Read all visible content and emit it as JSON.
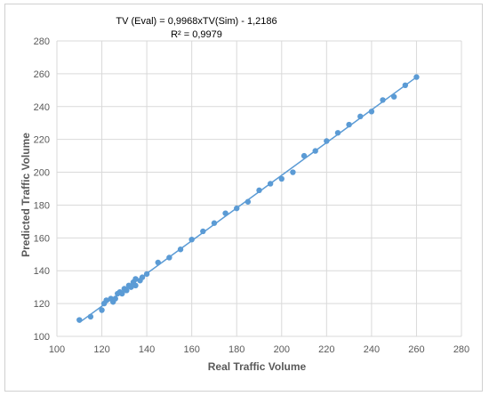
{
  "chart_data": {
    "type": "scatter",
    "title": "",
    "xlabel": "Real Traffic Volume",
    "ylabel": "Predicted Traffic Volume",
    "xlim": [
      100,
      280
    ],
    "ylim": [
      100,
      280
    ],
    "x_ticks": [
      "100",
      "120",
      "140",
      "160",
      "180",
      "200",
      "220",
      "240",
      "260",
      "280"
    ],
    "y_ticks": [
      "100",
      "120",
      "140",
      "160",
      "180",
      "200",
      "220",
      "240",
      "260",
      "280"
    ],
    "grid": true,
    "legend": "none",
    "point_color": "#5b9bd5",
    "trendline": {
      "equation": "TV (Eval) = 0,9968xTV(Sim) - 1,2186",
      "r2_label": "R² = 0,9979",
      "slope": 0.9968,
      "intercept": -1.2186,
      "x_range": [
        110,
        260
      ]
    },
    "points": [
      [
        110,
        110
      ],
      [
        115,
        112
      ],
      [
        120,
        116
      ],
      [
        121,
        120
      ],
      [
        122,
        122
      ],
      [
        124,
        123
      ],
      [
        125,
        121
      ],
      [
        126,
        123
      ],
      [
        127,
        126
      ],
      [
        128,
        127
      ],
      [
        129,
        126
      ],
      [
        130,
        129
      ],
      [
        131,
        128
      ],
      [
        132,
        131
      ],
      [
        133,
        130
      ],
      [
        134,
        133
      ],
      [
        135,
        131
      ],
      [
        135,
        135
      ],
      [
        137,
        134
      ],
      [
        138,
        136
      ],
      [
        140,
        138
      ],
      [
        145,
        145
      ],
      [
        150,
        148
      ],
      [
        155,
        153
      ],
      [
        160,
        159
      ],
      [
        165,
        164
      ],
      [
        170,
        169
      ],
      [
        175,
        175
      ],
      [
        180,
        178
      ],
      [
        185,
        182
      ],
      [
        190,
        189
      ],
      [
        195,
        193
      ],
      [
        200,
        196
      ],
      [
        205,
        200
      ],
      [
        210,
        210
      ],
      [
        215,
        213
      ],
      [
        220,
        219
      ],
      [
        225,
        224
      ],
      [
        230,
        229
      ],
      [
        235,
        234
      ],
      [
        240,
        237
      ],
      [
        245,
        244
      ],
      [
        250,
        246
      ],
      [
        255,
        253
      ],
      [
        260,
        258
      ]
    ]
  }
}
